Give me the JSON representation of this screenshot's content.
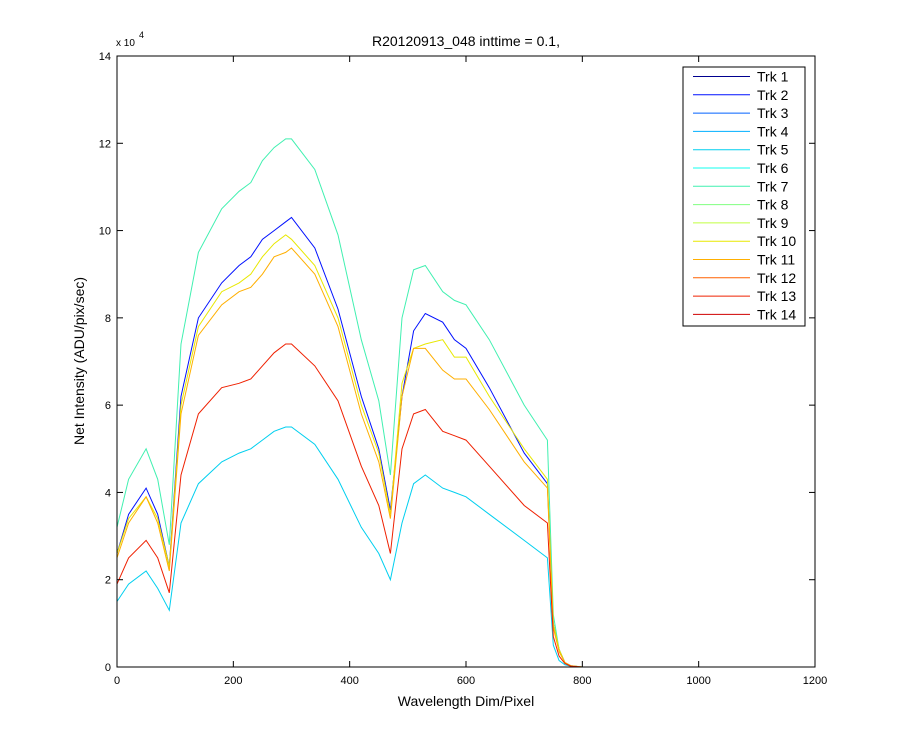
{
  "chart_data": {
    "type": "line",
    "title": "R20120913_048 inttime = 0.1,",
    "xlabel": "Wavelength Dim/Pixel",
    "ylabel": "Net Intensity (ADU/pix/sec)",
    "y_exponent_base": "x 10",
    "y_exponent_power": "4",
    "xlim": [
      0,
      1200
    ],
    "ylim": [
      0,
      140000
    ],
    "x_ticks": [
      0,
      200,
      400,
      600,
      800,
      1000,
      1200
    ],
    "y_ticks": [
      0,
      20000,
      40000,
      60000,
      80000,
      100000,
      120000,
      140000
    ],
    "x_tick_labels": [
      "0",
      "200",
      "400",
      "600",
      "800",
      "1000",
      "1200"
    ],
    "y_tick_labels": [
      "0",
      "2",
      "4",
      "6",
      "8",
      "10",
      "12",
      "14"
    ],
    "grid": false,
    "legend_position": "top-right",
    "x": [
      0,
      20,
      50,
      70,
      90,
      110,
      140,
      180,
      210,
      230,
      250,
      270,
      290,
      300,
      340,
      380,
      420,
      450,
      470,
      490,
      510,
      530,
      560,
      580,
      600,
      640,
      700,
      740,
      750,
      760,
      770,
      780,
      800,
      1025
    ],
    "series": [
      {
        "name": "Trk 1",
        "color": "#00008f",
        "values": [
          0,
          0,
          0,
          0,
          0,
          0,
          0,
          0,
          0,
          0,
          0,
          0,
          0,
          0,
          0,
          0,
          0,
          0,
          0,
          0,
          0,
          0,
          0,
          0,
          0,
          0,
          0,
          0,
          0,
          0,
          0,
          0,
          0,
          0
        ]
      },
      {
        "name": "Trk 2",
        "color": "#0010ff",
        "values": [
          26000,
          35000,
          41000,
          35000,
          23000,
          62000,
          80000,
          88000,
          92000,
          94000,
          98000,
          100000,
          102000,
          103000,
          96000,
          82000,
          62000,
          50000,
          36000,
          62000,
          77000,
          81000,
          79000,
          75000,
          73000,
          64000,
          49000,
          42000,
          10000,
          4000,
          1000,
          300,
          0,
          0
        ]
      },
      {
        "name": "Trk 3",
        "color": "#0060ff",
        "values": [
          0,
          0,
          0,
          0,
          0,
          0,
          0,
          0,
          0,
          0,
          0,
          0,
          0,
          0,
          0,
          0,
          0,
          0,
          0,
          0,
          0,
          0,
          0,
          0,
          0,
          0,
          0,
          0,
          0,
          0,
          0,
          0,
          0,
          0
        ]
      },
      {
        "name": "Trk 4",
        "color": "#00afff",
        "values": [
          0,
          0,
          0,
          0,
          0,
          0,
          0,
          0,
          0,
          0,
          0,
          0,
          0,
          0,
          0,
          0,
          0,
          0,
          0,
          0,
          0,
          0,
          0,
          0,
          0,
          0,
          0,
          0,
          0,
          0,
          0,
          0,
          0,
          0
        ]
      },
      {
        "name": "Trk 5",
        "color": "#00cfef",
        "values": [
          15000,
          19000,
          22000,
          18000,
          13000,
          33000,
          42000,
          47000,
          49000,
          50000,
          52000,
          54000,
          55000,
          55000,
          51000,
          43000,
          32000,
          26000,
          20000,
          33000,
          42000,
          44000,
          41000,
          40000,
          39000,
          35000,
          29000,
          25000,
          5000,
          1500,
          500,
          200,
          0,
          0
        ]
      },
      {
        "name": "Trk 6",
        "color": "#10ffef",
        "values": [
          0,
          0,
          0,
          0,
          0,
          0,
          0,
          0,
          0,
          0,
          0,
          0,
          0,
          0,
          0,
          0,
          0,
          0,
          0,
          0,
          0,
          0,
          0,
          0,
          0,
          0,
          0,
          0,
          0,
          0,
          0,
          0,
          0,
          0
        ]
      },
      {
        "name": "Trk 7",
        "color": "#40f0b0",
        "values": [
          32000,
          43000,
          50000,
          43000,
          28000,
          74000,
          95000,
          105000,
          109000,
          111000,
          116000,
          119000,
          121000,
          121000,
          114000,
          99000,
          75000,
          61000,
          44000,
          80000,
          91000,
          92000,
          86000,
          84000,
          83000,
          75000,
          60000,
          52000,
          12000,
          4000,
          1000,
          300,
          0,
          0
        ]
      },
      {
        "name": "Trk 8",
        "color": "#80ff80",
        "values": [
          0,
          0,
          0,
          0,
          0,
          0,
          0,
          0,
          0,
          0,
          0,
          0,
          0,
          0,
          0,
          0,
          0,
          0,
          0,
          0,
          0,
          0,
          0,
          0,
          0,
          0,
          0,
          0,
          0,
          0,
          0,
          0,
          0,
          0
        ]
      },
      {
        "name": "Trk 9",
        "color": "#c0ff40",
        "values": [
          0,
          0,
          0,
          0,
          0,
          0,
          0,
          0,
          0,
          0,
          0,
          0,
          0,
          0,
          0,
          0,
          0,
          0,
          0,
          0,
          0,
          0,
          0,
          0,
          0,
          0,
          0,
          0,
          0,
          0,
          0,
          0,
          0,
          0
        ]
      },
      {
        "name": "Trk 10",
        "color": "#e8e800",
        "values": [
          26000,
          34000,
          39000,
          34000,
          23000,
          60000,
          78000,
          86000,
          88000,
          90000,
          94000,
          97000,
          99000,
          98000,
          92000,
          80000,
          60000,
          49000,
          35000,
          65000,
          73000,
          74000,
          75000,
          71000,
          71000,
          62000,
          50000,
          43000,
          10000,
          4000,
          1000,
          300,
          0,
          0
        ]
      },
      {
        "name": "Trk 11",
        "color": "#ffaf00",
        "values": [
          25000,
          33000,
          39000,
          33000,
          22000,
          58000,
          76000,
          83000,
          86000,
          87000,
          90000,
          94000,
          95000,
          96000,
          90000,
          78000,
          58000,
          47000,
          34000,
          62000,
          73000,
          73000,
          68000,
          66000,
          66000,
          59000,
          47000,
          41000,
          9000,
          3500,
          1000,
          300,
          0,
          0
        ]
      },
      {
        "name": "Trk 12",
        "color": "#ff6000",
        "values": [
          0,
          0,
          0,
          0,
          0,
          0,
          0,
          0,
          0,
          0,
          0,
          0,
          0,
          0,
          0,
          0,
          0,
          0,
          0,
          0,
          0,
          0,
          0,
          0,
          0,
          0,
          0,
          0,
          0,
          0,
          0,
          0,
          0,
          0
        ]
      },
      {
        "name": "Trk 13",
        "color": "#ef2000",
        "values": [
          19000,
          25000,
          29000,
          25000,
          17000,
          44000,
          58000,
          64000,
          65000,
          66000,
          69000,
          72000,
          74000,
          74000,
          69000,
          61000,
          46000,
          37000,
          26000,
          50000,
          58000,
          59000,
          54000,
          53000,
          52000,
          46000,
          37000,
          33000,
          7000,
          2500,
          800,
          200,
          0,
          0
        ]
      },
      {
        "name": "Trk 14",
        "color": "#cf0000",
        "values": [
          0,
          0,
          0,
          0,
          0,
          0,
          0,
          0,
          0,
          0,
          0,
          0,
          0,
          0,
          0,
          0,
          0,
          0,
          0,
          0,
          0,
          0,
          0,
          0,
          0,
          0,
          0,
          0,
          0,
          0,
          0,
          0,
          0,
          0
        ]
      }
    ]
  }
}
